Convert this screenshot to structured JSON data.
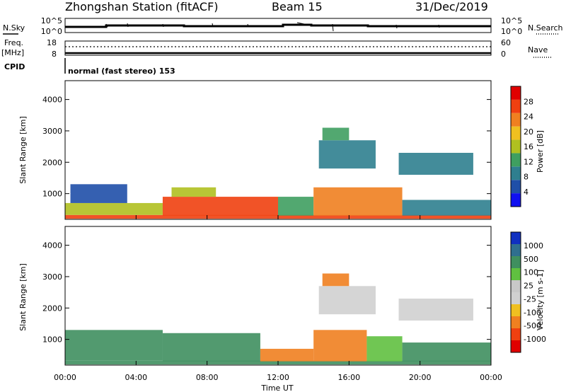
{
  "header": {
    "station": "Zhongshan Station (fitACF)",
    "beam": "Beam 15",
    "date": "31/Dec/2019"
  },
  "status_panels": {
    "nsky": {
      "label": "N.Sky",
      "ticks": [
        "10^5",
        "10^0"
      ]
    },
    "nsearch": {
      "label": "N.Search",
      "ticks": [
        "10^5",
        "10^0"
      ]
    },
    "freq": {
      "label_line1": "Freq.",
      "label_line2": "[MHz]",
      "ticks": [
        "18",
        "8"
      ]
    },
    "nave": {
      "label": "Nave",
      "ticks": [
        "60",
        "0"
      ]
    },
    "cpid": {
      "label": "CPID",
      "value": "normal (fast stereo) 153"
    }
  },
  "colors": {
    "power_scale": [
      "#1010f0",
      "#1f4fa8",
      "#2f7f8f",
      "#3f9f60",
      "#b0c020",
      "#f0c020",
      "#f08020",
      "#f04010",
      "#e00000"
    ],
    "velocity_scale": [
      "#e00000",
      "#f04010",
      "#f08020",
      "#f0c020",
      "#d0d0d0",
      "#c8c8c8",
      "#60c040",
      "#3f8f5f",
      "#2f6f8f",
      "#1030c0"
    ]
  },
  "chart_data": [
    {
      "type": "heatmap",
      "panel": "power",
      "ylabel": "Slant Range [km]",
      "yticks": [
        "4000",
        "3000",
        "2000",
        "1000"
      ],
      "ylim": [
        180,
        4600
      ],
      "xlim_hours": [
        0,
        24
      ],
      "colorbar": {
        "label": "Power [dB]",
        "ticks": [
          "28",
          "24",
          "20",
          "16",
          "12",
          "8",
          "4"
        ],
        "range": [
          0,
          30
        ]
      },
      "regions": [
        {
          "t": [
            0.0,
            24.0
          ],
          "r": [
            200,
            320
          ],
          "v": 26
        },
        {
          "t": [
            0.0,
            5.5
          ],
          "r": [
            320,
            700
          ],
          "v": 14
        },
        {
          "t": [
            0.3,
            3.5
          ],
          "r": [
            700,
            1300
          ],
          "v": 6
        },
        {
          "t": [
            5.5,
            12.0
          ],
          "r": [
            300,
            900
          ],
          "v": 24
        },
        {
          "t": [
            6.0,
            8.5
          ],
          "r": [
            900,
            1200
          ],
          "v": 14
        },
        {
          "t": [
            12.0,
            14.0
          ],
          "r": [
            300,
            900
          ],
          "v": 10
        },
        {
          "t": [
            14.0,
            19.0
          ],
          "r": [
            300,
            1200
          ],
          "v": 22
        },
        {
          "t": [
            19.0,
            24.0
          ],
          "r": [
            300,
            800
          ],
          "v": 8
        },
        {
          "t": [
            14.3,
            17.5
          ],
          "r": [
            1800,
            2700
          ],
          "v": 8
        },
        {
          "t": [
            14.5,
            16.0
          ],
          "r": [
            2700,
            3100
          ],
          "v": 10
        },
        {
          "t": [
            18.8,
            23.0
          ],
          "r": [
            1600,
            2300
          ],
          "v": 7
        }
      ]
    },
    {
      "type": "heatmap",
      "panel": "velocity",
      "ylabel": "Slant Range [km]",
      "yticks": [
        "4000",
        "3000",
        "2000",
        "1000"
      ],
      "ylim": [
        180,
        4600
      ],
      "xlim_hours": [
        0,
        24
      ],
      "xlabel": "Time UT",
      "xticks": [
        "00:00",
        "04:00",
        "08:00",
        "12:00",
        "16:00",
        "20:00",
        "00:00"
      ],
      "colorbar": {
        "label": "Velocity [m s-1]",
        "ticks": [
          "1000",
          "500",
          "100",
          "25",
          "-25",
          "-100",
          "-500",
          "-1000"
        ],
        "range": [
          -1000,
          1000
        ]
      },
      "regions": [
        {
          "t": [
            0.0,
            24.0
          ],
          "r": [
            200,
            320
          ],
          "v": 150
        },
        {
          "t": [
            0.0,
            5.5
          ],
          "r": [
            320,
            1300
          ],
          "v": 200
        },
        {
          "t": [
            5.5,
            11.0
          ],
          "r": [
            300,
            1200
          ],
          "v": 150
        },
        {
          "t": [
            11.0,
            14.0
          ],
          "r": [
            300,
            700
          ],
          "v": -150
        },
        {
          "t": [
            14.0,
            17.0
          ],
          "r": [
            300,
            1300
          ],
          "v": -300
        },
        {
          "t": [
            17.0,
            19.0
          ],
          "r": [
            300,
            1100
          ],
          "v": 80
        },
        {
          "t": [
            19.0,
            24.0
          ],
          "r": [
            300,
            900
          ],
          "v": 150
        },
        {
          "t": [
            14.3,
            17.5
          ],
          "r": [
            1800,
            2700
          ],
          "v": 0
        },
        {
          "t": [
            14.5,
            16.0
          ],
          "r": [
            2700,
            3100
          ],
          "v": -300
        },
        {
          "t": [
            18.8,
            23.0
          ],
          "r": [
            1600,
            2300
          ],
          "v": 0
        }
      ]
    }
  ]
}
